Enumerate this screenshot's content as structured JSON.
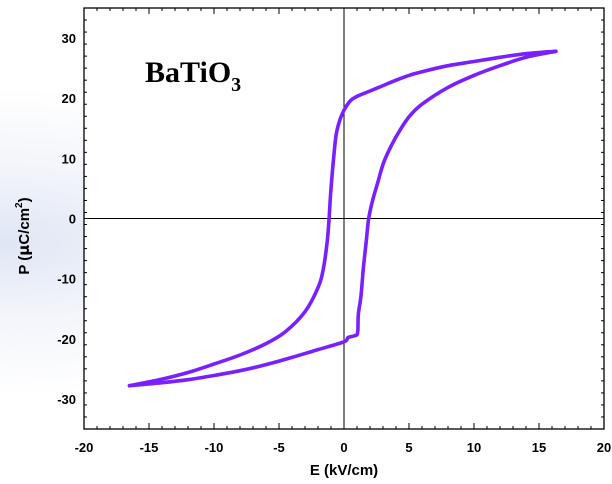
{
  "chart_data": {
    "type": "line",
    "xlabel": "E (kV/cm)",
    "ylabel": "P (μC/cm²)",
    "ylabel_parts": {
      "pre": "P (",
      "mu": "μ",
      "unit": "C/cm",
      "sup": "2",
      "post": ")"
    },
    "annotation": {
      "base": "BaTiO",
      "sub": "3"
    },
    "xlim": [
      -20,
      20
    ],
    "ylim": [
      -35,
      35
    ],
    "xticks": [
      -20,
      -15,
      -10,
      -5,
      0,
      5,
      10,
      15,
      20
    ],
    "yticks": [
      -30,
      -20,
      -10,
      0,
      10,
      20,
      30
    ],
    "grid": false,
    "line_color": "#7a1fff",
    "series": [
      {
        "x": [
          -16.5,
          -14,
          -12,
          -10,
          -8,
          -6,
          -4.5,
          -3,
          -2,
          -1.6,
          -1.3,
          -1.15,
          -1.0,
          -0.8,
          -0.6,
          -0.3,
          0,
          0.5,
          1,
          2,
          3,
          4,
          5,
          6,
          8,
          10,
          12,
          14,
          16.3
        ],
        "y": [
          -27.8,
          -26.7,
          -25.6,
          -24.2,
          -22.7,
          -20.8,
          -18.8,
          -15.5,
          -11.5,
          -8.5,
          -4,
          0,
          5,
          10,
          14,
          16.5,
          18,
          19.6,
          20.3,
          21.2,
          22.1,
          23,
          23.8,
          24.4,
          25.4,
          26.1,
          26.8,
          27.4,
          27.8
        ]
      },
      {
        "x": [
          16.3,
          14,
          12,
          10,
          8,
          6,
          5,
          4.2,
          3.5,
          3.0,
          2.6,
          2.2,
          1.9,
          1.7,
          1.5,
          1.3,
          1.1,
          1.05,
          0.8,
          0.3,
          0,
          -2,
          -4,
          -6,
          -8,
          -10,
          -12,
          -14,
          -16.5
        ],
        "y": [
          27.8,
          26.8,
          25.4,
          23.8,
          21.8,
          19,
          16.9,
          14.3,
          11.5,
          9,
          6,
          3,
          0,
          -4,
          -8,
          -13,
          -16,
          -19,
          -19.5,
          -19.8,
          -20.5,
          -21.8,
          -23.1,
          -24.3,
          -25.3,
          -26.1,
          -26.8,
          -27.3,
          -27.8
        ]
      }
    ]
  }
}
